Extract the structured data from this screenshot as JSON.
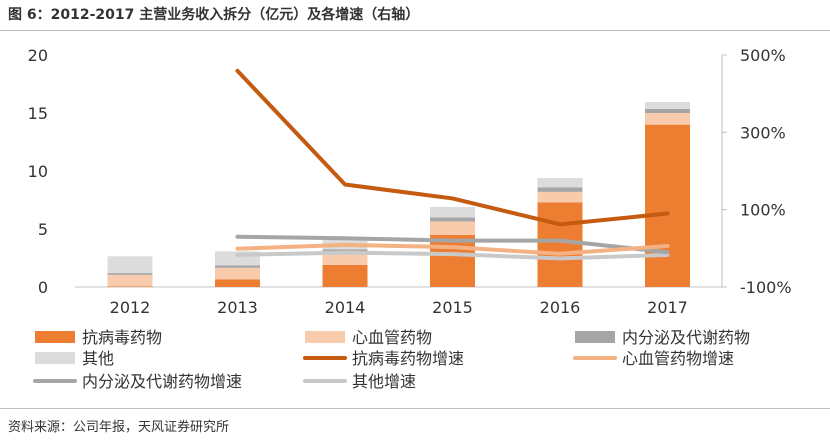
{
  "title": "图 6：2012-2017 主营业务收入拆分（亿元）及各增速（右轴）",
  "source": "资料来源：公司年报，天风证券研究所",
  "chart_data": {
    "type": "bar",
    "title": "2012-2017 主营业务收入拆分（亿元）及各增速（右轴）",
    "categories": [
      "2012",
      "2013",
      "2014",
      "2015",
      "2016",
      "2017"
    ],
    "ylim": [
      0,
      20
    ],
    "yticks": [
      "0",
      "5",
      "10",
      "15",
      "20"
    ],
    "ytick_values": [
      0,
      5,
      10,
      15,
      20
    ],
    "y2lim": [
      -100,
      500
    ],
    "y2ticks": [
      "-100%",
      "100%",
      "300%",
      "500%"
    ],
    "y2tick_values": [
      -100,
      100,
      300,
      500
    ],
    "stacked_series": [
      {
        "name": "抗病毒药物",
        "color": "#ED7D31",
        "values": [
          0.05,
          0.66,
          1.9,
          4.5,
          7.3,
          14.0
        ]
      },
      {
        "name": "心血管药物",
        "color": "#F8CBAD",
        "values": [
          1.0,
          1.0,
          1.1,
          1.15,
          0.9,
          1.0
        ]
      },
      {
        "name": "内分泌及代谢药物",
        "color": "#A5A5A5",
        "values": [
          0.15,
          0.2,
          0.25,
          0.35,
          0.4,
          0.35
        ]
      },
      {
        "name": "其他",
        "color": "#DCDCDC",
        "values": [
          1.45,
          1.22,
          0.8,
          0.9,
          0.8,
          0.6
        ]
      }
    ],
    "line_series": [
      {
        "name": "抗病毒药物增速",
        "color": "#C55A11",
        "values": [
          null,
          459,
          165,
          129,
          62,
          90
        ]
      },
      {
        "name": "心血管药物增速",
        "color": "#F4B183",
        "values": [
          null,
          -1,
          9,
          3,
          -14,
          6
        ]
      },
      {
        "name": "内分泌及代谢药物增速",
        "color": "#A5A5A5",
        "values": [
          null,
          30,
          26,
          20,
          20,
          -10
        ]
      },
      {
        "name": "其他增速",
        "color": "#C9C9C9",
        "values": [
          null,
          -17,
          -11,
          -15,
          -26,
          -17
        ]
      }
    ],
    "legend_position": "bottom"
  }
}
